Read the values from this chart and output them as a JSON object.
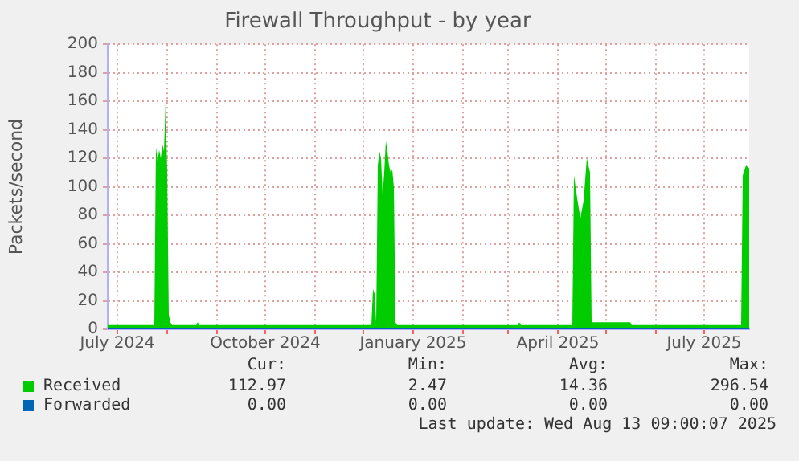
{
  "chart_data": {
    "type": "area",
    "title": "Firewall Throughput - by year",
    "ylabel": "Packets/second",
    "x": [
      "2024-06-25",
      "2024-07-24",
      "2024-07-25",
      "2024-07-26",
      "2024-07-27",
      "2024-07-28",
      "2024-07-29",
      "2024-07-30",
      "2024-07-31",
      "2024-08-01",
      "2024-08-02",
      "2024-08-03",
      "2024-08-04",
      "2024-08-19",
      "2024-08-20",
      "2024-08-21",
      "2024-12-06",
      "2024-12-07",
      "2024-12-08",
      "2024-12-09",
      "2024-12-10",
      "2024-12-11",
      "2024-12-12",
      "2024-12-13",
      "2024-12-14",
      "2024-12-15",
      "2024-12-16",
      "2024-12-17",
      "2024-12-18",
      "2024-12-19",
      "2024-12-20",
      "2024-12-21",
      "2024-12-22",
      "2025-03-07",
      "2025-03-08",
      "2025-03-09",
      "2025-04-10",
      "2025-04-11",
      "2025-04-13",
      "2025-04-15",
      "2025-04-17",
      "2025-04-19",
      "2025-04-21",
      "2025-04-22",
      "2025-04-30",
      "2025-05-08",
      "2025-05-16",
      "2025-05-17",
      "2025-07-24",
      "2025-07-25",
      "2025-07-27",
      "2025-07-29"
    ],
    "series": [
      {
        "name": "Received",
        "color": "#00cc00",
        "values": [
          3,
          3,
          128,
          118,
          126,
          120,
          130,
          125,
          160,
          110,
          10,
          5,
          3,
          3,
          5,
          3,
          3,
          28,
          25,
          5,
          115,
          125,
          120,
          95,
          110,
          132,
          125,
          115,
          110,
          112,
          100,
          5,
          3,
          3,
          5,
          3,
          3,
          108,
          92,
          78,
          90,
          120,
          110,
          5,
          5,
          5,
          5,
          3,
          3,
          108,
          115,
          113
        ]
      },
      {
        "name": "Forwarded",
        "color": "#0066b3",
        "type": "line",
        "x": [
          "2024-06-25",
          "2025-07-29"
        ],
        "values": [
          0,
          0
        ]
      }
    ],
    "xlim": [
      "2024-06-25",
      "2025-07-29"
    ],
    "xticks": [
      {
        "value": "2024-07-01",
        "label": "July 2024"
      },
      {
        "value": "2024-08-01",
        "label": null
      },
      {
        "value": "2024-09-01",
        "label": null
      },
      {
        "value": "2024-10-01",
        "label": "October 2024"
      },
      {
        "value": "2024-11-01",
        "label": null
      },
      {
        "value": "2024-12-01",
        "label": null
      },
      {
        "value": "2025-01-01",
        "label": "January 2025"
      },
      {
        "value": "2025-02-01",
        "label": null
      },
      {
        "value": "2025-03-01",
        "label": null
      },
      {
        "value": "2025-04-01",
        "label": "April 2025"
      },
      {
        "value": "2025-05-01",
        "label": null
      },
      {
        "value": "2025-06-01",
        "label": null
      },
      {
        "value": "2025-07-01",
        "label": "July 2025"
      }
    ],
    "ylim": [
      0,
      200
    ],
    "yticks": [
      0,
      20,
      40,
      60,
      80,
      100,
      120,
      140,
      160,
      180,
      200
    ],
    "grid": true,
    "legend": "bottom left",
    "annotations": [
      "Cur:",
      "Min:",
      "Avg:",
      "Max:",
      "112.97",
      "2.47",
      "14.36",
      "296.54",
      "0.00",
      "0.00",
      "0.00",
      "0.00",
      "Last update: Wed Aug 13 09:00:07 2025"
    ]
  }
}
